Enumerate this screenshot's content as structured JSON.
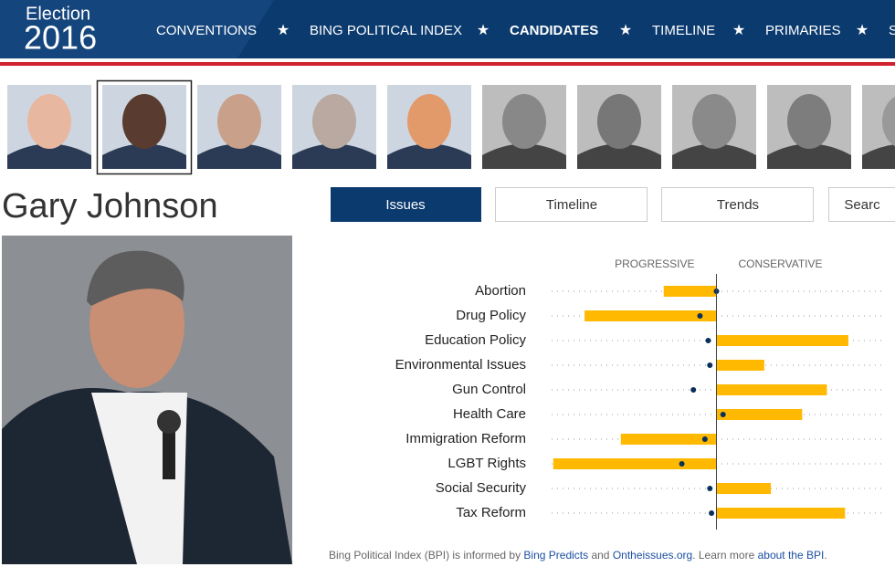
{
  "header": {
    "logo": [
      "Election",
      "2016"
    ],
    "nav": [
      "CONVENTIONS",
      "BING POLITICAL INDEX",
      "CANDIDATES",
      "TIMELINE",
      "PRIMARIES",
      "S"
    ],
    "active_nav": 2
  },
  "candidate": {
    "name": "Gary Johnson"
  },
  "tabs": [
    "Issues",
    "Timeline",
    "Trends",
    "Searc"
  ],
  "active_tab": 0,
  "chart_data": {
    "type": "diverging-bar",
    "headings": [
      "PROGRESSIVE",
      "CONSERVATIVE"
    ],
    "categories": [
      "Abortion",
      "Drug Policy",
      "Education Policy",
      "Environmental Issues",
      "Gun Control",
      "Health Care",
      "Immigration Reform",
      "LGBT Rights",
      "Social Security",
      "Tax Reform"
    ],
    "values": [
      -32,
      -80,
      80,
      29,
      67,
      52,
      -58,
      -99,
      33,
      78
    ],
    "markers": [
      0,
      -10,
      -5,
      -4,
      -14,
      4,
      -7,
      -21,
      -4,
      -3
    ],
    "color": "#ffb900",
    "marker_color": "#0b2f5b",
    "xlim": [
      -100,
      100
    ]
  },
  "footer": [
    {
      "text": "Bing Political Index (BPI) is informed by ",
      "link": false
    },
    {
      "text": "Bing Predicts",
      "link": true
    },
    {
      "text": " and ",
      "link": false
    },
    {
      "text": "Ontheissues.org",
      "link": true
    },
    {
      "text": ". Learn more ",
      "link": false
    },
    {
      "text": "about the BPI",
      "link": true
    },
    {
      "text": ".",
      "link": false
    }
  ]
}
